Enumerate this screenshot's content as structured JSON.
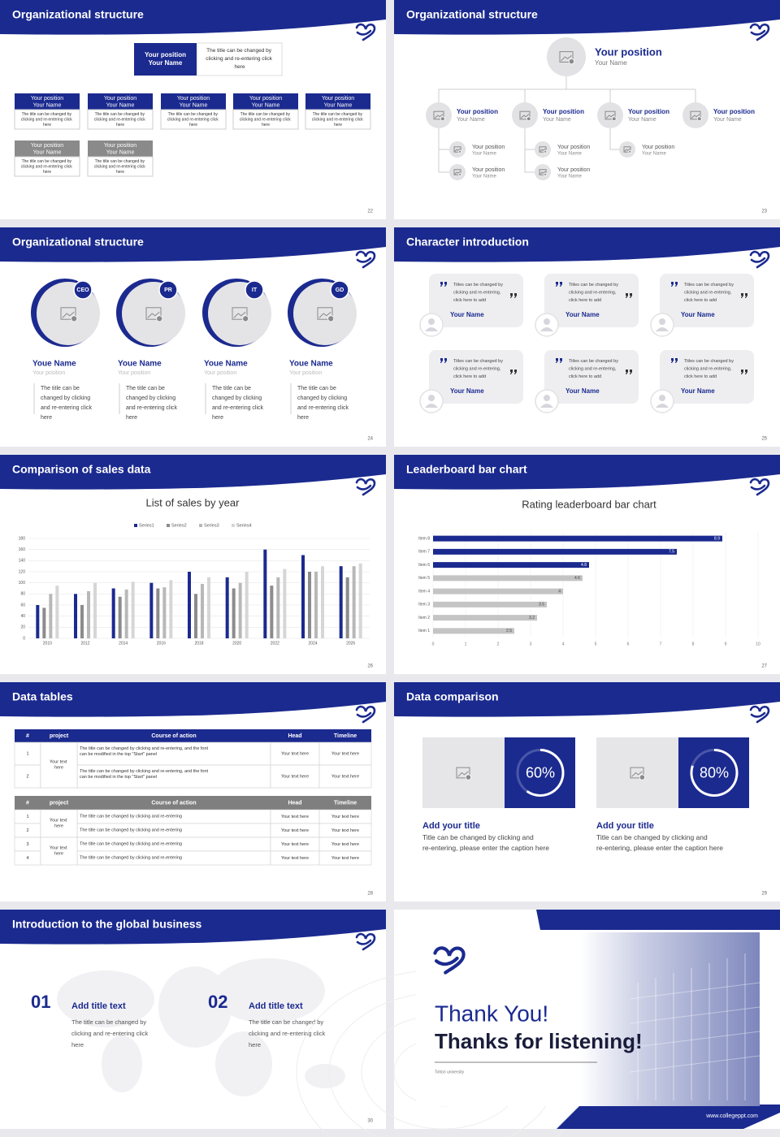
{
  "slides": [
    {
      "title": "Organizational structure",
      "page": "22",
      "top": {
        "position": "Your position",
        "name": "Your Name",
        "text": "The title can be changed by clicking and re-entering click here"
      },
      "boxes": [
        {
          "position": "Your position",
          "name": "Your Name",
          "text": "The title can be changed by clicking and re-entering click here"
        },
        {
          "position": "Your position",
          "name": "Your Name",
          "text": "The title can be changed by clicking and re-entering click here"
        },
        {
          "position": "Your position",
          "name": "Your Name",
          "text": "The title can be changed by clicking and re-entering click here"
        },
        {
          "position": "Your position",
          "name": "Your Name",
          "text": "The title can be changed by clicking and re-entering click here"
        },
        {
          "position": "Your position",
          "name": "Your Name",
          "text": "The title can be changed by clicking and re-entering click here"
        },
        {
          "position": "Your position",
          "name": "Your Name",
          "text": "The title can be changed by clicking and re-entering click here"
        },
        {
          "position": "Your position",
          "name": "Your Name",
          "text": "The title can be changed by clicking and re-entering click here"
        }
      ]
    },
    {
      "title": "Organizational structure",
      "page": "23",
      "top": {
        "position": "Your position",
        "name": "Your Name"
      },
      "level2": [
        {
          "position": "Your position",
          "name": "Your Name"
        },
        {
          "position": "Your position",
          "name": "Your Name"
        },
        {
          "position": "Your position",
          "name": "Your Name"
        },
        {
          "position": "Your position",
          "name": "Your Name"
        }
      ],
      "level3": [
        {
          "position": "Your position",
          "name": "Your Name"
        },
        {
          "position": "Your position",
          "name": "Your Name"
        },
        {
          "position": "Your position",
          "name": "Your Name"
        },
        {
          "position": "Your position",
          "name": "Your Name"
        },
        {
          "position": "Your position",
          "name": "Your Name"
        }
      ]
    },
    {
      "title": "Organizational structure",
      "page": "24",
      "members": [
        {
          "tag": "CEO",
          "name": "Youe Name",
          "position": "Your position",
          "text": "The title can be changed by clicking and re-entering click here"
        },
        {
          "tag": "PR",
          "name": "Youe Name",
          "position": "Your position",
          "text": "The title can be changed by clicking and re-entering click here"
        },
        {
          "tag": "IT",
          "name": "Youe Name",
          "position": "Your position",
          "text": "The title can be changed by clicking and re-entering click here"
        },
        {
          "tag": "GD",
          "name": "Youe Name",
          "position": "Your position",
          "text": "The title can be changed by clicking and re-entering click here"
        }
      ]
    },
    {
      "title": "Character introduction",
      "page": "25",
      "cards": [
        {
          "text": "Titles can be changed by clicking and re-entering, click here to add",
          "name": "Your Name"
        },
        {
          "text": "Titles can be changed by clicking and re-entering, click here to add",
          "name": "Your Name"
        },
        {
          "text": "Titles can be changed by clicking and re-entering, click here to add",
          "name": "Your Name"
        },
        {
          "text": "Titles can be changed by clicking and re-entering, click here to add",
          "name": "Your Name"
        },
        {
          "text": "Titles can be changed by clicking and re-entering, click here to add",
          "name": "Your Name"
        },
        {
          "text": "Titles can be changed by clicking and re-entering, click here to add",
          "name": "Your Name"
        }
      ]
    },
    {
      "title": "Comparison of sales data",
      "page": "26"
    },
    {
      "title": "Leaderboard bar chart",
      "page": "27"
    },
    {
      "title": "Data tables",
      "page": "28",
      "tables": [
        {
          "header": [
            "#",
            "project",
            "Course of action",
            "Head",
            "Timeline"
          ],
          "projects": [
            "Your text here"
          ],
          "rows": [
            {
              "num": "1",
              "course": "The title can be changed by clicking and re-entering, and the font can be modified in the top \"Start\" panel",
              "head": "Your text here",
              "timeline": "Your text here"
            },
            {
              "num": "2",
              "course": "The title can be changed by clicking and re-entering, and the font can be modified in the top \"Start\" panel",
              "head": "Your text here",
              "timeline": "Your text here"
            }
          ]
        },
        {
          "header": [
            "#",
            "project",
            "Course of action",
            "Head",
            "Timeline"
          ],
          "projects": [
            "Your text here",
            "Your text here"
          ],
          "rows": [
            {
              "num": "1",
              "course": "The title can be changed by clicking and re-entering",
              "head": "Your text here",
              "timeline": "Your text here"
            },
            {
              "num": "2",
              "course": "The title can be changed by clicking and re-entering",
              "head": "Your text here",
              "timeline": "Your text here"
            },
            {
              "num": "3",
              "course": "The title can be changed by clicking and re-entering",
              "head": "Your text here",
              "timeline": "Your text here"
            },
            {
              "num": "4",
              "course": "The title can be changed by clicking and re-entering",
              "head": "Your text here",
              "timeline": "Your text here"
            }
          ]
        }
      ]
    },
    {
      "title": "Data comparison",
      "page": "29",
      "items": [
        {
          "value": 60,
          "value_label": "60%",
          "title": "Add your title",
          "text": "Title can be changed by clicking and re-entering, please enter the caption here"
        },
        {
          "value": 80,
          "value_label": "80%",
          "title": "Add your title",
          "text": "Title can be changed by clicking and re-entering, please enter the caption here"
        }
      ]
    },
    {
      "title": "Introduction to the global business",
      "page": "30",
      "items": [
        {
          "number": "01",
          "title": "Add title text",
          "text": "The title can be changed by clicking and re-entering click here"
        },
        {
          "number": "02",
          "title": "Add title text",
          "text": "The title can be changed by clicking and re-entering click here"
        }
      ]
    },
    {
      "thanks": "Thank You!",
      "subtitle": "Thanks for listening!",
      "school": "Tottori university",
      "url": "www.collegeppt.com"
    }
  ],
  "chart_data": [
    {
      "type": "bar",
      "title": "List of sales by year",
      "categories": [
        "2010",
        "2012",
        "2014",
        "2016",
        "2018",
        "2020",
        "2022",
        "2024",
        "2026"
      ],
      "series": [
        {
          "name": "Series1",
          "color": "#1b2a8f",
          "values": [
            60,
            80,
            90,
            100,
            120,
            110,
            160,
            150,
            130
          ]
        },
        {
          "name": "Series2",
          "color": "#8c8c8c",
          "values": [
            55,
            60,
            75,
            90,
            80,
            90,
            95,
            120,
            110
          ]
        },
        {
          "name": "Series3",
          "color": "#b8b8b8",
          "values": [
            80,
            85,
            88,
            92,
            98,
            100,
            110,
            120,
            130
          ]
        },
        {
          "name": "Series4",
          "color": "#d6d6d6",
          "values": [
            95,
            100,
            102,
            105,
            110,
            120,
            125,
            130,
            135
          ]
        }
      ],
      "ylim": [
        0,
        180
      ],
      "yticks": [
        0,
        20,
        40,
        60,
        80,
        100,
        120,
        140,
        160,
        180
      ],
      "grid": true,
      "legend": "top"
    },
    {
      "type": "bar",
      "horizontal": true,
      "title": "Rating leaderboard bar chart",
      "categories": [
        "Item 1",
        "Item 2",
        "Item 3",
        "Item 4",
        "Item 5",
        "Item 6",
        "Item 7",
        "Item 8"
      ],
      "values": [
        2.5,
        3.2,
        3.5,
        4,
        4.6,
        4.8,
        7.5,
        8.9
      ],
      "colors": [
        "#c4c4c4",
        "#c4c4c4",
        "#c4c4c4",
        "#c4c4c4",
        "#c4c4c4",
        "#1b2a8f",
        "#1b2a8f",
        "#1b2a8f"
      ],
      "xlim": [
        0,
        10
      ],
      "xticks": [
        0,
        1,
        2,
        3,
        4,
        5,
        6,
        7,
        8,
        9,
        10
      ],
      "grid": true
    }
  ]
}
